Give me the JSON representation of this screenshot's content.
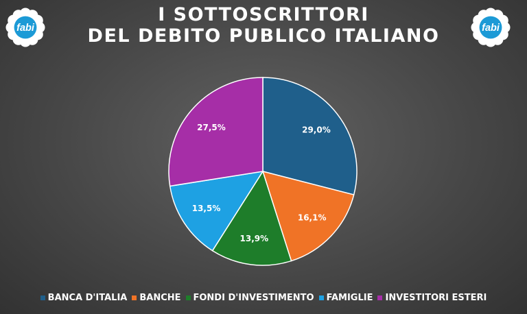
{
  "title": {
    "line1": "I SOTTOSCRITTORI",
    "line2": "DEL DEBITO PUBLICO ITALIANO"
  },
  "logo": {
    "text": "fabi",
    "icon": "fabi-flower-logo",
    "colors": {
      "petal": "#ffffff",
      "center": "#1c9ad6"
    }
  },
  "chart_data": {
    "type": "pie",
    "categories": [
      "BANCA D'ITALIA",
      "BANCHE",
      "FONDI D'INVESTIMENTO",
      "FAMIGLIE",
      "INVESTITORI ESTERI"
    ],
    "values": [
      29.0,
      16.1,
      13.9,
      13.5,
      27.5
    ],
    "labels": [
      "29,0%",
      "16,1%",
      "13,9%",
      "13,5%",
      "27,5%"
    ],
    "colors": [
      "#1f5f8b",
      "#f07326",
      "#1e7d2a",
      "#1ea1e3",
      "#a62ea7"
    ],
    "start_angle": "12 o'clock",
    "direction": "clockwise",
    "legend_position": "bottom"
  }
}
